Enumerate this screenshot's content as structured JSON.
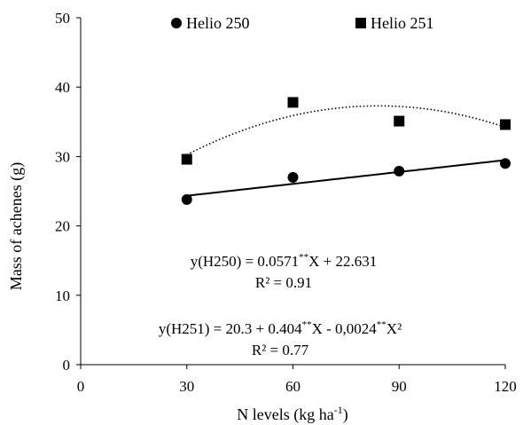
{
  "chart_data": {
    "type": "scatter",
    "xlabel": "N levels (kg ha",
    "xlabel_sup": "-1",
    "xlabel_end": ")",
    "ylabel": "Mass of achenes (g)",
    "xlim": [
      0,
      120
    ],
    "ylim": [
      0,
      50
    ],
    "x_ticks": [
      0,
      30,
      60,
      90,
      120
    ],
    "y_ticks": [
      0,
      10,
      20,
      30,
      40,
      50
    ],
    "grid": false,
    "legend_position": "top",
    "series": [
      {
        "name": "Helio 250",
        "marker": "circle",
        "x": [
          30,
          60,
          90,
          120
        ],
        "y": [
          23.8,
          27.0,
          27.9,
          29.0
        ],
        "trend": {
          "type": "linear",
          "line": "solid",
          "intercept": 22.631,
          "slope": 0.0571
        }
      },
      {
        "name": "Helio 251",
        "marker": "square",
        "x": [
          30,
          60,
          90,
          120
        ],
        "y": [
          29.6,
          37.8,
          35.1,
          34.6
        ],
        "trend": {
          "type": "quadratic",
          "line": "dotted",
          "c0": 20.3,
          "c1": 0.404,
          "c2": -0.0024
        }
      }
    ],
    "annotations": [
      {
        "parts": [
          "y(H250) = 0.0571",
          "**",
          "X + 22.631"
        ]
      },
      {
        "parts": [
          "R² = 0.91"
        ]
      },
      {
        "parts": [
          "y(H251) = 20.3 + 0.404",
          "**",
          "X - 0,0024",
          "**",
          "X²"
        ]
      },
      {
        "parts": [
          "R² = 0.77"
        ]
      }
    ]
  }
}
